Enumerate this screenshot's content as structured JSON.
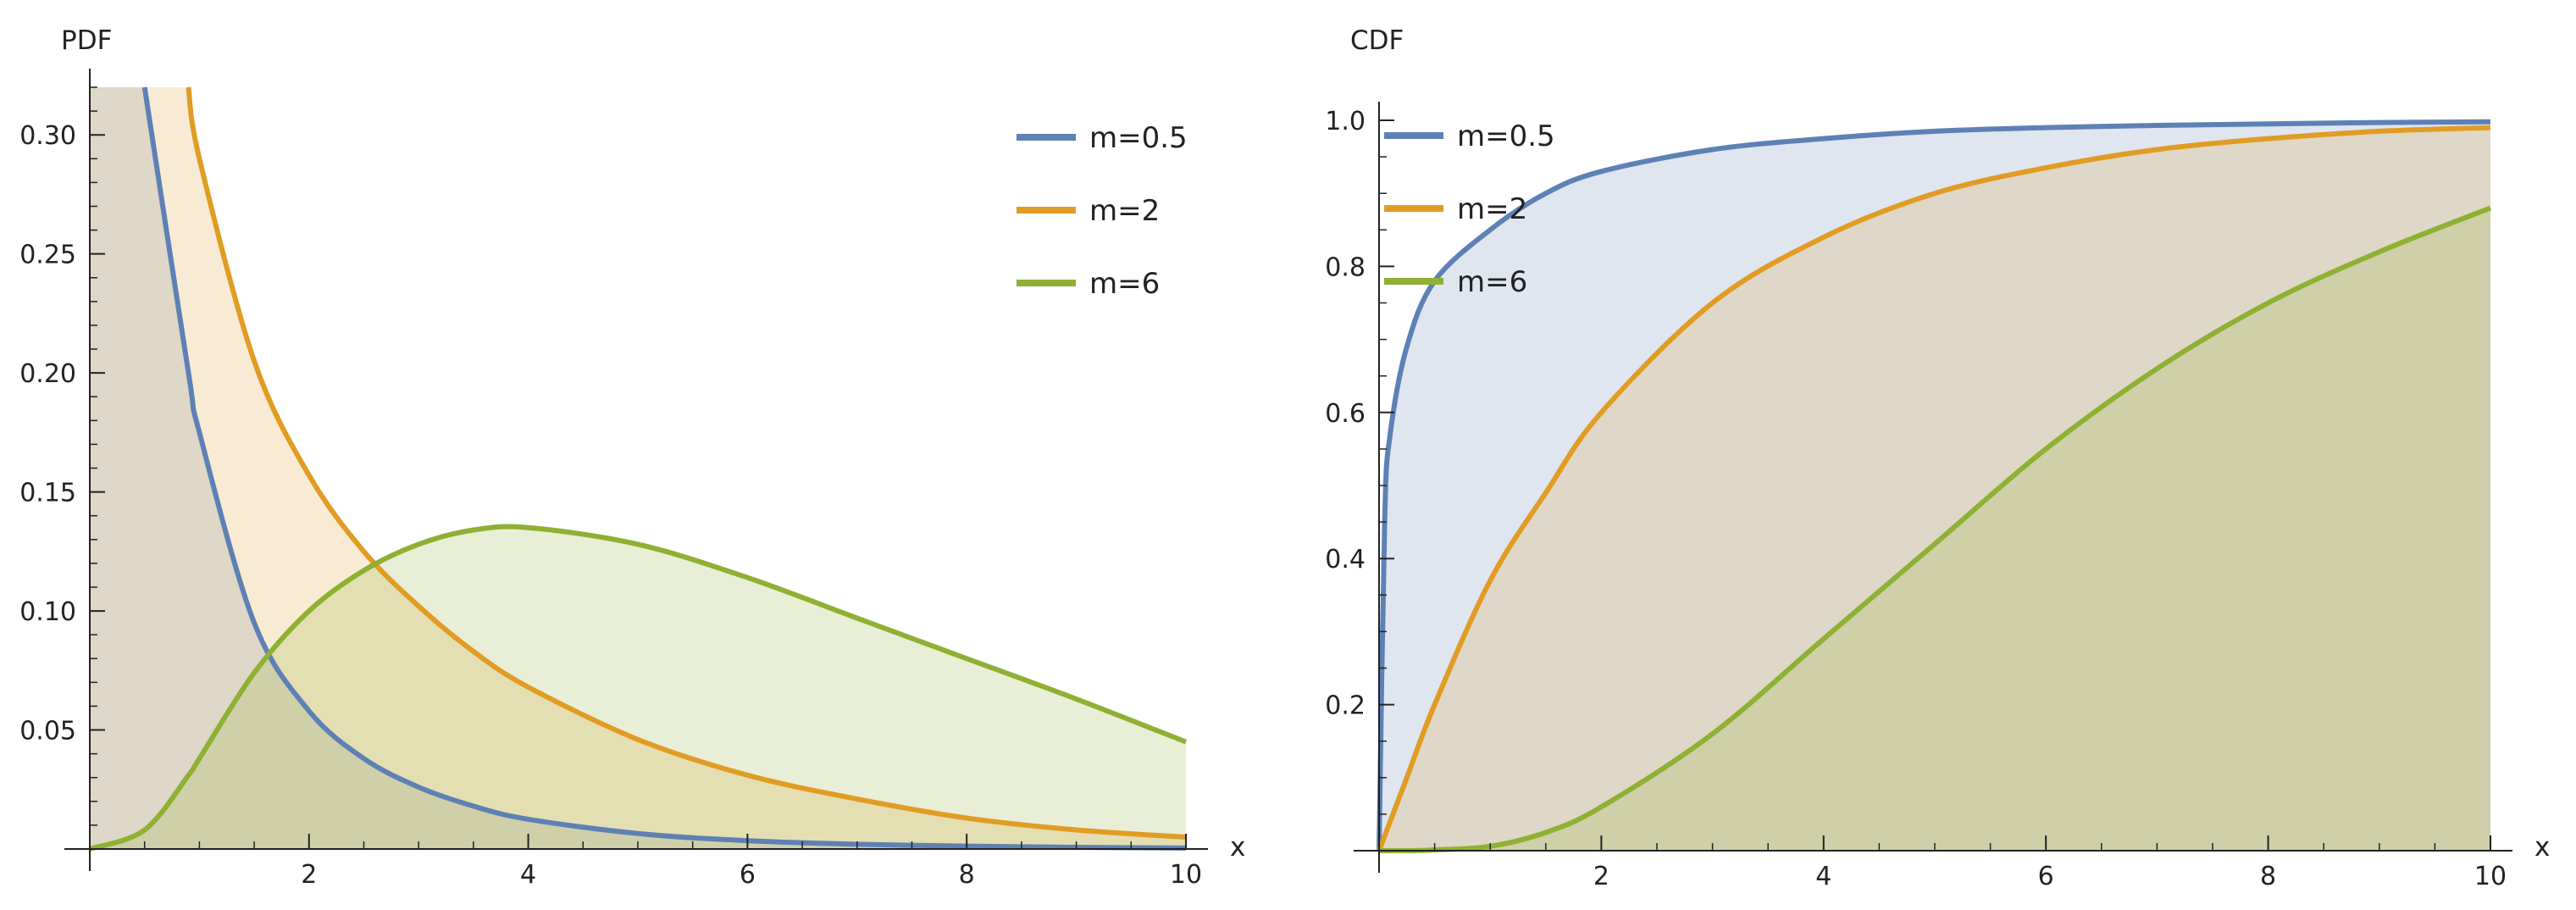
{
  "chart_data": [
    {
      "type": "area",
      "ylabel": "PDF",
      "xlabel": "x",
      "xlim": [
        0,
        10
      ],
      "ylim": [
        0,
        0.32
      ],
      "x_ticks": [
        2,
        4,
        6,
        8,
        10
      ],
      "y_ticks": [
        0.05,
        0.1,
        0.15,
        0.2,
        0.25,
        0.3
      ],
      "x_tick_labels": [
        "2",
        "4",
        "6",
        "8",
        "10"
      ],
      "y_tick_labels": [
        "0.05",
        "0.10",
        "0.15",
        "0.20",
        "0.25",
        "0.30"
      ],
      "grid": false,
      "legend_position": "top-right",
      "x": [
        0,
        0.5,
        0.9,
        1,
        1.5,
        2,
        2.5,
        3,
        3.5,
        4,
        5,
        6,
        7,
        8,
        9,
        10
      ],
      "series": [
        {
          "name": "m=0.5",
          "color": "#5E81B5",
          "values": [
            null,
            0.32,
            0.2,
            0.175,
            0.095,
            0.058,
            0.038,
            0.026,
            0.018,
            0.0125,
            0.0065,
            0.0035,
            0.002,
            0.0012,
            0.0007,
            0.0004
          ]
        },
        {
          "name": "m=2",
          "color": "#E19C24",
          "values": [
            null,
            null,
            0.32,
            0.29,
            0.205,
            0.157,
            0.125,
            0.102,
            0.083,
            0.068,
            0.046,
            0.031,
            0.021,
            0.013,
            0.008,
            0.005
          ]
        },
        {
          "name": "m=6",
          "color": "#8FB032",
          "values": [
            0.0,
            0.008,
            0.031,
            0.038,
            0.074,
            0.1,
            0.117,
            0.128,
            0.134,
            0.135,
            0.128,
            0.114,
            0.097,
            0.08,
            0.063,
            0.045
          ]
        }
      ]
    },
    {
      "type": "area",
      "ylabel": "CDF",
      "xlabel": "x",
      "xlim": [
        0,
        10
      ],
      "ylim": [
        0,
        1.0
      ],
      "x_ticks": [
        2,
        4,
        6,
        8,
        10
      ],
      "y_ticks": [
        0.2,
        0.4,
        0.6,
        0.8,
        1.0
      ],
      "x_tick_labels": [
        "2",
        "4",
        "6",
        "8",
        "10"
      ],
      "y_tick_labels": [
        "0.2",
        "0.4",
        "0.6",
        "0.8",
        "1.0"
      ],
      "grid": false,
      "legend_position": "top-left",
      "x": [
        0,
        0.05,
        0.1,
        0.25,
        0.5,
        1,
        1.5,
        2,
        3,
        4,
        5,
        6,
        7,
        8,
        9,
        10
      ],
      "series": [
        {
          "name": "m=0.5",
          "color": "#5E81B5",
          "values": [
            0,
            0.45,
            0.57,
            0.69,
            0.78,
            0.85,
            0.9,
            0.93,
            0.96,
            0.975,
            0.985,
            0.99,
            0.993,
            0.995,
            0.997,
            0.998
          ]
        },
        {
          "name": "m=2",
          "color": "#E19C24",
          "values": [
            0,
            0.02,
            0.04,
            0.1,
            0.2,
            0.37,
            0.49,
            0.6,
            0.75,
            0.84,
            0.9,
            0.935,
            0.96,
            0.975,
            0.985,
            0.99
          ]
        },
        {
          "name": "m=6",
          "color": "#8FB032",
          "values": [
            0,
            0,
            0,
            0,
            0.001,
            0.006,
            0.025,
            0.06,
            0.16,
            0.29,
            0.42,
            0.55,
            0.66,
            0.75,
            0.82,
            0.88
          ]
        }
      ]
    }
  ]
}
